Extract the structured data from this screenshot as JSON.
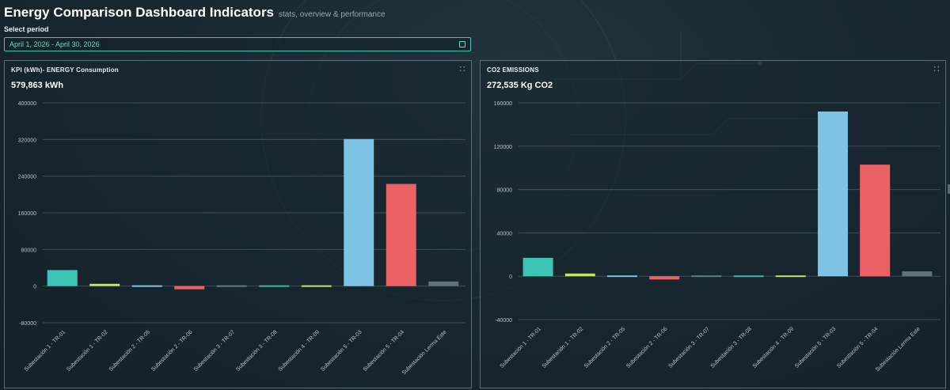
{
  "header": {
    "title": "Energy Comparison Dashboard Indicators",
    "subtitle": "stats, overview & performance"
  },
  "period": {
    "label": "Select period",
    "value": "April 1, 2026 - April 30, 2026",
    "icon": "calendar-icon"
  },
  "panels": [
    {
      "title": "KPI (kWh)- ENERGY Consumption",
      "total": "579,863 kWh",
      "icon": "expand-icon"
    },
    {
      "title": "CO2 EMISSIONS",
      "total": "272,535 Kg CO2",
      "icon": "expand-icon"
    }
  ],
  "chart_data": [
    {
      "type": "bar",
      "categories": [
        "Subestación 1 - TR-01",
        "Subestación 1 - TR-02",
        "Subestación 2 - TR-05",
        "Subestación 2 - TR-06",
        "Subestación 3 - TR-07",
        "Subestación 3 - TR-08",
        "Subestación 4 - TR-09",
        "Subestación 5 - TR-03",
        "Subestación 5 - TR-04",
        "Subestación Lerma Este"
      ],
      "values": [
        35000,
        5000,
        -2000,
        -7000,
        -1000,
        -1000,
        2000,
        321000,
        223000,
        10000
      ],
      "colors": [
        "#3cc4b4",
        "#c4e85c",
        "#7fc3e4",
        "#ec6163",
        "#5e7e86",
        "#3fb4a8",
        "#c4e85c",
        "#7fc3e4",
        "#ec6163",
        "#5f7378"
      ],
      "ylim": [
        -80000,
        400000
      ],
      "yticks": [
        -80000,
        0,
        80000,
        160000,
        240000,
        320000,
        400000
      ],
      "grid": true,
      "legend": "none"
    },
    {
      "type": "bar",
      "categories": [
        "Subestación 1 - TR-01",
        "Subestación 1 - TR-02",
        "Subestación 2 - TR-05",
        "Subestación 2 - TR-06",
        "Subestación 3 - TR-07",
        "Subestación 3 - TR-08",
        "Subestación 4 - TR-09",
        "Subestación 5 - TR-03",
        "Subestación 5 - TR-04",
        "Subestación Lerma Este"
      ],
      "values": [
        17000,
        2500,
        -1000,
        -3000,
        -500,
        -500,
        1000,
        152000,
        103000,
        4500
      ],
      "colors": [
        "#3cc4b4",
        "#c4e85c",
        "#7fc3e4",
        "#ec6163",
        "#5e7e86",
        "#3fb4a8",
        "#c4e85c",
        "#7fc3e4",
        "#ec6163",
        "#5f7378"
      ],
      "ylim": [
        -40000,
        160000
      ],
      "yticks": [
        -40000,
        0,
        40000,
        80000,
        120000,
        160000
      ],
      "grid": true,
      "legend": "none"
    }
  ]
}
